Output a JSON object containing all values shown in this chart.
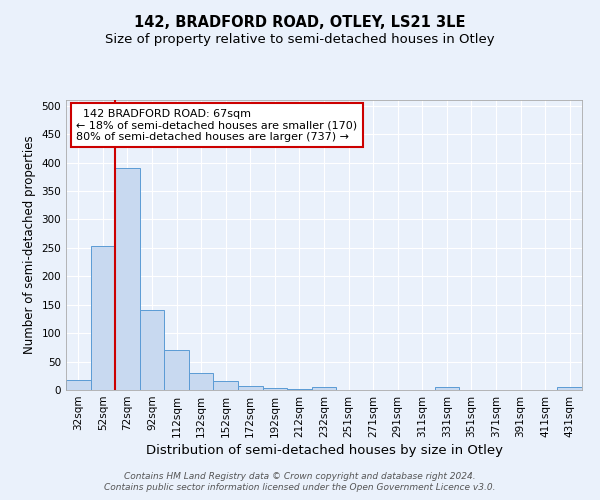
{
  "title": "142, BRADFORD ROAD, OTLEY, LS21 3LE",
  "subtitle": "Size of property relative to semi-detached houses in Otley",
  "xlabel": "Distribution of semi-detached houses by size in Otley",
  "ylabel": "Number of semi-detached properties",
  "footnote1": "Contains HM Land Registry data © Crown copyright and database right 2024.",
  "footnote2": "Contains public sector information licensed under the Open Government Licence v3.0.",
  "bar_labels": [
    "32sqm",
    "52sqm",
    "72sqm",
    "92sqm",
    "112sqm",
    "132sqm",
    "152sqm",
    "172sqm",
    "192sqm",
    "212sqm",
    "232sqm",
    "251sqm",
    "271sqm",
    "291sqm",
    "311sqm",
    "331sqm",
    "351sqm",
    "371sqm",
    "391sqm",
    "411sqm",
    "431sqm"
  ],
  "bar_values": [
    18,
    253,
    390,
    140,
    70,
    30,
    16,
    7,
    4,
    2,
    5,
    0,
    0,
    0,
    0,
    5,
    0,
    0,
    0,
    0,
    5
  ],
  "bar_color": "#c8d9f0",
  "bar_edge_color": "#5b9bd5",
  "red_line_x": 1.5,
  "red_line_color": "#cc0000",
  "annotation_line1": "  142 BRADFORD ROAD: 67sqm  ",
  "annotation_line2": "← 18% of semi-detached houses are smaller (170)",
  "annotation_line3": "80% of semi-detached houses are larger (737) →",
  "annotation_box_color": "#ffffff",
  "annotation_box_edge": "#cc0000",
  "ylim": [
    0,
    510
  ],
  "yticks": [
    0,
    50,
    100,
    150,
    200,
    250,
    300,
    350,
    400,
    450,
    500
  ],
  "bg_color": "#eaf1fb",
  "plot_bg_color": "#eaf1fb",
  "grid_color": "#ffffff",
  "title_fontsize": 10.5,
  "subtitle_fontsize": 9.5,
  "xlabel_fontsize": 9.5,
  "ylabel_fontsize": 8.5,
  "tick_fontsize": 7.5,
  "annotation_fontsize": 8,
  "footnote_fontsize": 6.5
}
